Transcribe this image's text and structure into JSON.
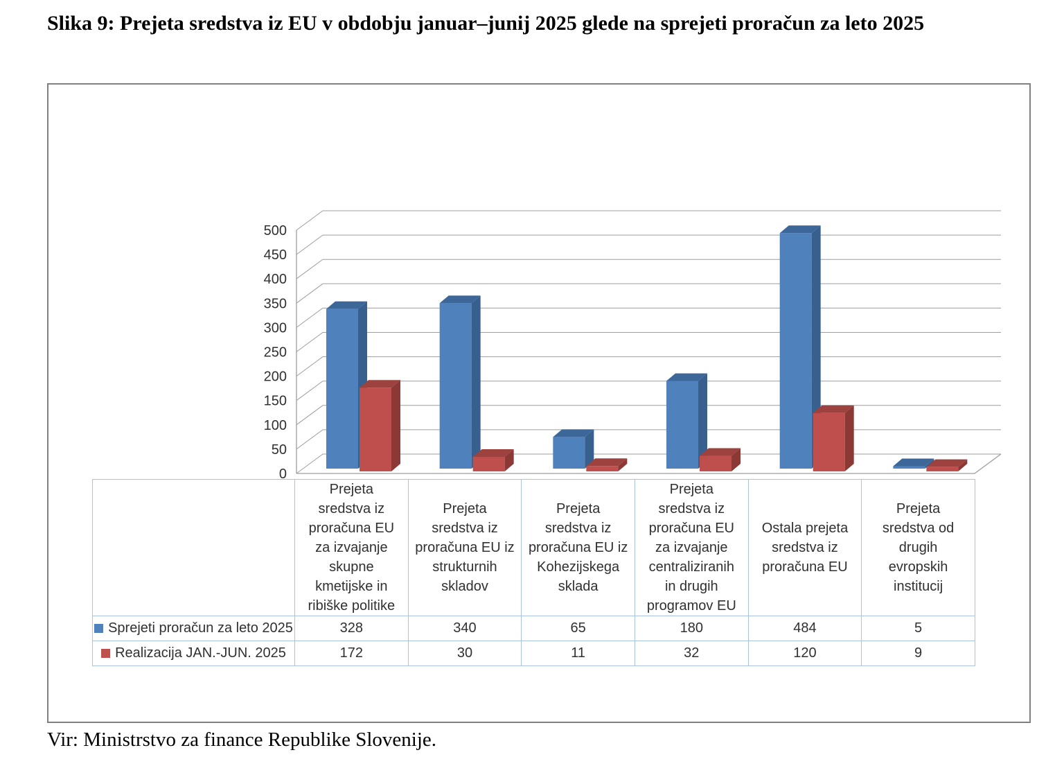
{
  "title": "Slika 9: Prejeta sredstva iz EU v obdobju januar–junij 2025 glede na sprejeti proračun za leto 2025",
  "source": "Vir: Ministrstvo za finance Republike Slovenije.",
  "chart_data": {
    "type": "bar",
    "variant": "3d-clustered-column",
    "title": "",
    "xlabel": "",
    "ylabel": "",
    "ylim": [
      0,
      500
    ],
    "ytick_step": 50,
    "grid": true,
    "legend_position": "table-rows-left",
    "categories": [
      "Prejeta sredstva iz proračuna EU za izvajanje skupne kmetijske in ribiške politike",
      "Prejeta sredstva iz proračuna EU iz strukturnih skladov",
      "Prejeta sredstva iz proračuna EU iz Kohezijskega sklada",
      "Prejeta sredstva iz proračuna EU za izvajanje centraliziranih in drugih programov EU",
      "Ostala prejeta sredstva iz proračuna EU",
      "Prejeta sredstva od drugih evropskih institucij"
    ],
    "category_labels_display": [
      "Prejeta\nsredstva iz\nproračuna EU\nza izvajanje\nskupne\nkmetijske in\nribiške politike",
      "Prejeta\nsredstva iz\nproračuna EU iz\nstrukturnih\nskladov",
      "Prejeta\nsredstva iz\nproračuna EU iz\nKohezijskega\nsklada",
      "Prejeta\nsredstva iz\nproračuna EU\nza izvajanje\ncentraliziranih\nin drugih\nprogramov EU",
      "Ostala prejeta\nsredstva iz\nproračuna EU",
      "Prejeta\nsredstva od\ndrugih\nevropskih\ninstitucij"
    ],
    "series": [
      {
        "name": "Sprejeti proračun za leto 2025",
        "values": [
          328,
          340,
          65,
          180,
          484,
          5
        ],
        "colors": {
          "front": "#4F81BD",
          "top": "#3D6799",
          "side": "#38608F"
        }
      },
      {
        "name": "Realizacija JAN.-JUN. 2025",
        "values": [
          172,
          30,
          11,
          32,
          120,
          9
        ],
        "colors": {
          "front": "#BF4F4C",
          "top": "#9D423F",
          "side": "#8C3936"
        }
      }
    ]
  },
  "styles": {
    "frame_border_color": "#808080",
    "gridline_color": "#9d9d9d",
    "table_border_color": "#a9c2de",
    "text_color": "#303030"
  }
}
